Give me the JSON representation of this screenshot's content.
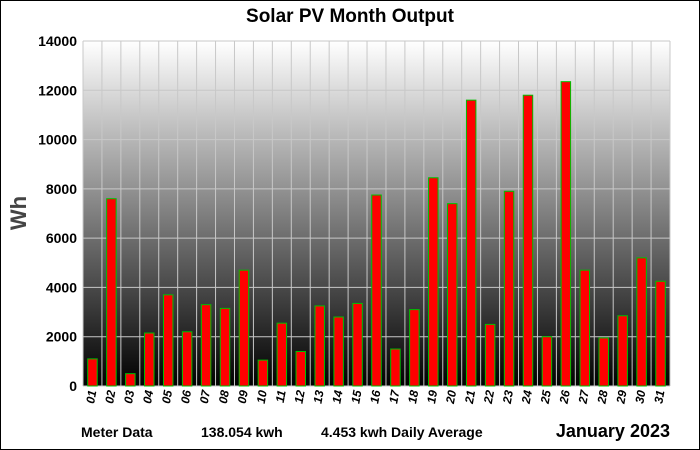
{
  "chart_data": {
    "type": "bar",
    "title": "Solar PV Month Output",
    "ylabel": "Wh",
    "xlabel": "",
    "ylim": [
      0,
      14000
    ],
    "yticks": [
      0,
      2000,
      4000,
      6000,
      8000,
      10000,
      12000,
      14000
    ],
    "grid": true,
    "categories": [
      "01",
      "02",
      "03",
      "04",
      "05",
      "06",
      "07",
      "08",
      "09",
      "10",
      "11",
      "12",
      "13",
      "14",
      "15",
      "16",
      "17",
      "18",
      "19",
      "20",
      "21",
      "22",
      "23",
      "24",
      "25",
      "26",
      "27",
      "28",
      "29",
      "30",
      "31"
    ],
    "values": [
      1100,
      7600,
      500,
      2150,
      3700,
      2200,
      3300,
      3150,
      4700,
      1050,
      2550,
      1400,
      3250,
      2800,
      3350,
      7750,
      1500,
      3100,
      8450,
      7400,
      11600,
      2500,
      7900,
      11800,
      2000,
      12350,
      4700,
      1950,
      2850,
      5200,
      4250
    ],
    "colors": {
      "bar_fill": "#ff0000",
      "bar_edge": "#00c000",
      "background_top": "#ffffff",
      "background_bottom": "#000000",
      "grid": "#c8c8c8"
    }
  },
  "footer": {
    "meter_label": "Meter Data",
    "total": "138.054 kwh",
    "daily_average": "4.453 kwh Daily Average",
    "month": "January 2023"
  }
}
